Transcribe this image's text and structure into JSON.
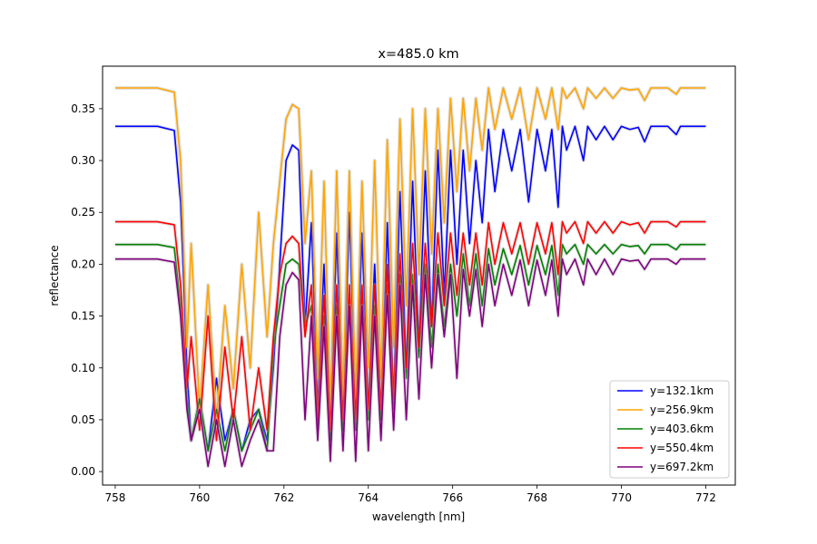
{
  "chart_data": {
    "type": "line",
    "title": "x=485.0 km",
    "xlabel": "wavelength [nm]",
    "ylabel": "reflectance",
    "xlim": [
      757.7,
      772.7
    ],
    "ylim": [
      -0.013,
      0.391
    ],
    "xticks": [
      758,
      760,
      762,
      764,
      766,
      768,
      770,
      772
    ],
    "yticks": [
      0.0,
      0.05,
      0.1,
      0.15,
      0.2,
      0.25,
      0.3,
      0.35
    ],
    "xtick_labels": [
      "758",
      "760",
      "762",
      "764",
      "766",
      "768",
      "770",
      "772"
    ],
    "ytick_labels": [
      "0.00",
      "0.05",
      "0.10",
      "0.15",
      "0.20",
      "0.25",
      "0.30",
      "0.35"
    ],
    "grid": false,
    "legend_position": "lower-right",
    "series": [
      {
        "name": "y=132.1km",
        "color": "#0000ff",
        "x": [
          758.0,
          759.0,
          759.4,
          759.55,
          759.7,
          759.8,
          760.0,
          760.2,
          760.4,
          760.6,
          760.8,
          761.0,
          761.2,
          761.4,
          761.6,
          761.75,
          761.9,
          762.05,
          762.2,
          762.35,
          762.5,
          762.65,
          762.8,
          762.95,
          763.1,
          763.25,
          763.4,
          763.55,
          763.7,
          763.85,
          764.0,
          764.15,
          764.3,
          764.45,
          764.6,
          764.75,
          764.9,
          765.05,
          765.2,
          765.35,
          765.5,
          765.65,
          765.8,
          765.95,
          766.1,
          766.25,
          766.4,
          766.55,
          766.7,
          766.85,
          767.0,
          767.2,
          767.4,
          767.6,
          767.8,
          768.0,
          768.2,
          768.35,
          768.5,
          768.6,
          768.7,
          768.9,
          769.1,
          769.2,
          769.4,
          769.6,
          769.8,
          770.0,
          770.2,
          770.4,
          770.55,
          770.7,
          770.9,
          771.1,
          771.3,
          771.4,
          771.6,
          771.8,
          772.0
        ],
        "values": [
          0.333,
          0.333,
          0.329,
          0.26,
          0.1,
          0.03,
          0.07,
          0.02,
          0.09,
          0.03,
          0.06,
          0.02,
          0.05,
          0.06,
          0.03,
          0.1,
          0.2,
          0.3,
          0.315,
          0.31,
          0.14,
          0.24,
          0.06,
          0.2,
          0.04,
          0.23,
          0.05,
          0.25,
          0.05,
          0.23,
          0.06,
          0.2,
          0.05,
          0.24,
          0.07,
          0.27,
          0.1,
          0.28,
          0.12,
          0.29,
          0.14,
          0.31,
          0.17,
          0.31,
          0.2,
          0.31,
          0.22,
          0.3,
          0.24,
          0.33,
          0.27,
          0.33,
          0.29,
          0.33,
          0.26,
          0.33,
          0.29,
          0.33,
          0.255,
          0.333,
          0.31,
          0.333,
          0.3,
          0.333,
          0.32,
          0.333,
          0.32,
          0.333,
          0.33,
          0.332,
          0.318,
          0.333,
          0.333,
          0.333,
          0.325,
          0.333,
          0.333,
          0.333,
          0.333
        ]
      },
      {
        "name": "y=256.9km",
        "color": "#ffa500",
        "x": [
          758.0,
          759.0,
          759.4,
          759.55,
          759.7,
          759.8,
          760.0,
          760.2,
          760.4,
          760.6,
          760.8,
          761.0,
          761.2,
          761.4,
          761.6,
          761.75,
          761.9,
          762.05,
          762.2,
          762.35,
          762.5,
          762.65,
          762.8,
          762.95,
          763.1,
          763.25,
          763.4,
          763.55,
          763.7,
          763.85,
          764.0,
          764.15,
          764.3,
          764.45,
          764.6,
          764.75,
          764.9,
          765.05,
          765.2,
          765.35,
          765.5,
          765.65,
          765.8,
          765.95,
          766.1,
          766.25,
          766.4,
          766.55,
          766.7,
          766.85,
          767.0,
          767.2,
          767.4,
          767.6,
          767.8,
          768.0,
          768.2,
          768.35,
          768.5,
          768.6,
          768.7,
          768.9,
          769.1,
          769.2,
          769.4,
          769.6,
          769.8,
          770.0,
          770.2,
          770.4,
          770.55,
          770.7,
          770.9,
          771.1,
          771.3,
          771.4,
          771.6,
          771.8,
          772.0
        ],
        "values": [
          0.37,
          0.37,
          0.366,
          0.3,
          0.12,
          0.22,
          0.06,
          0.18,
          0.05,
          0.16,
          0.08,
          0.2,
          0.1,
          0.25,
          0.13,
          0.22,
          0.28,
          0.34,
          0.354,
          0.35,
          0.22,
          0.29,
          0.09,
          0.28,
          0.06,
          0.29,
          0.07,
          0.29,
          0.07,
          0.28,
          0.1,
          0.3,
          0.09,
          0.32,
          0.12,
          0.34,
          0.16,
          0.35,
          0.19,
          0.35,
          0.21,
          0.35,
          0.24,
          0.36,
          0.27,
          0.36,
          0.29,
          0.36,
          0.31,
          0.37,
          0.33,
          0.37,
          0.34,
          0.37,
          0.32,
          0.37,
          0.34,
          0.37,
          0.33,
          0.37,
          0.36,
          0.37,
          0.35,
          0.37,
          0.36,
          0.37,
          0.36,
          0.37,
          0.368,
          0.369,
          0.358,
          0.37,
          0.37,
          0.37,
          0.364,
          0.37,
          0.37,
          0.37,
          0.37
        ]
      },
      {
        "name": "y=403.6km",
        "color": "#008000",
        "x": [
          758.0,
          759.0,
          759.4,
          759.55,
          759.7,
          759.8,
          760.0,
          760.2,
          760.4,
          760.6,
          760.8,
          761.0,
          761.2,
          761.4,
          761.6,
          761.75,
          761.9,
          762.05,
          762.2,
          762.35,
          762.5,
          762.65,
          762.8,
          762.95,
          763.1,
          763.25,
          763.4,
          763.55,
          763.7,
          763.85,
          764.0,
          764.15,
          764.3,
          764.45,
          764.6,
          764.75,
          764.9,
          765.05,
          765.2,
          765.35,
          765.5,
          765.65,
          765.8,
          765.95,
          766.1,
          766.25,
          766.4,
          766.55,
          766.7,
          766.85,
          767.0,
          767.2,
          767.4,
          767.6,
          767.8,
          768.0,
          768.2,
          768.35,
          768.5,
          768.6,
          768.7,
          768.9,
          769.1,
          769.2,
          769.4,
          769.6,
          769.8,
          770.0,
          770.2,
          770.4,
          770.55,
          770.7,
          770.9,
          771.1,
          771.3,
          771.4,
          771.6,
          771.8,
          772.0
        ],
        "values": [
          0.219,
          0.219,
          0.216,
          0.16,
          0.07,
          0.03,
          0.07,
          0.02,
          0.06,
          0.02,
          0.06,
          0.02,
          0.04,
          0.06,
          0.02,
          0.12,
          0.16,
          0.2,
          0.205,
          0.2,
          0.14,
          0.16,
          0.04,
          0.15,
          0.03,
          0.16,
          0.04,
          0.17,
          0.04,
          0.17,
          0.05,
          0.16,
          0.05,
          0.18,
          0.06,
          0.19,
          0.09,
          0.19,
          0.11,
          0.2,
          0.12,
          0.2,
          0.14,
          0.2,
          0.15,
          0.21,
          0.16,
          0.21,
          0.16,
          0.215,
          0.18,
          0.215,
          0.19,
          0.218,
          0.18,
          0.218,
          0.19,
          0.218,
          0.17,
          0.219,
          0.21,
          0.219,
          0.2,
          0.219,
          0.21,
          0.219,
          0.21,
          0.219,
          0.217,
          0.218,
          0.21,
          0.219,
          0.219,
          0.219,
          0.214,
          0.219,
          0.219,
          0.219,
          0.219
        ]
      },
      {
        "name": "y=550.4km",
        "color": "#ff0000",
        "x": [
          758.0,
          759.0,
          759.4,
          759.55,
          759.7,
          759.8,
          760.0,
          760.2,
          760.4,
          760.6,
          760.8,
          761.0,
          761.2,
          761.4,
          761.6,
          761.75,
          761.9,
          762.05,
          762.2,
          762.35,
          762.5,
          762.65,
          762.8,
          762.95,
          763.1,
          763.25,
          763.4,
          763.55,
          763.7,
          763.85,
          764.0,
          764.15,
          764.3,
          764.45,
          764.6,
          764.75,
          764.9,
          765.05,
          765.2,
          765.35,
          765.5,
          765.65,
          765.8,
          765.95,
          766.1,
          766.25,
          766.4,
          766.55,
          766.7,
          766.85,
          767.0,
          767.2,
          767.4,
          767.6,
          767.8,
          768.0,
          768.2,
          768.35,
          768.5,
          768.6,
          768.7,
          768.9,
          769.1,
          769.2,
          769.4,
          769.6,
          769.8,
          770.0,
          770.2,
          770.4,
          770.55,
          770.7,
          770.9,
          771.1,
          771.3,
          771.4,
          771.6,
          771.8,
          772.0
        ],
        "values": [
          0.241,
          0.241,
          0.238,
          0.18,
          0.08,
          0.13,
          0.04,
          0.15,
          0.03,
          0.12,
          0.05,
          0.13,
          0.04,
          0.1,
          0.04,
          0.13,
          0.19,
          0.22,
          0.227,
          0.22,
          0.13,
          0.18,
          0.05,
          0.17,
          0.04,
          0.18,
          0.05,
          0.18,
          0.05,
          0.18,
          0.06,
          0.18,
          0.06,
          0.2,
          0.07,
          0.21,
          0.1,
          0.22,
          0.12,
          0.22,
          0.14,
          0.23,
          0.16,
          0.23,
          0.17,
          0.23,
          0.18,
          0.23,
          0.18,
          0.24,
          0.2,
          0.24,
          0.21,
          0.24,
          0.2,
          0.24,
          0.21,
          0.24,
          0.19,
          0.241,
          0.23,
          0.241,
          0.22,
          0.241,
          0.23,
          0.241,
          0.23,
          0.241,
          0.238,
          0.24,
          0.23,
          0.241,
          0.241,
          0.241,
          0.236,
          0.241,
          0.241,
          0.241,
          0.241
        ]
      },
      {
        "name": "y=697.2km",
        "color": "#800080",
        "x": [
          758.0,
          759.0,
          759.4,
          759.55,
          759.7,
          759.8,
          760.0,
          760.2,
          760.4,
          760.6,
          760.8,
          761.0,
          761.2,
          761.4,
          761.6,
          761.75,
          761.9,
          762.05,
          762.2,
          762.35,
          762.5,
          762.65,
          762.8,
          762.95,
          763.1,
          763.25,
          763.4,
          763.55,
          763.7,
          763.85,
          764.0,
          764.15,
          764.3,
          764.45,
          764.6,
          764.75,
          764.9,
          765.05,
          765.2,
          765.35,
          765.5,
          765.65,
          765.8,
          765.95,
          766.1,
          766.25,
          766.4,
          766.55,
          766.7,
          766.85,
          767.0,
          767.2,
          767.4,
          767.6,
          767.8,
          768.0,
          768.2,
          768.35,
          768.5,
          768.6,
          768.7,
          768.9,
          769.1,
          769.2,
          769.4,
          769.6,
          769.8,
          770.0,
          770.2,
          770.4,
          770.55,
          770.7,
          770.9,
          771.1,
          771.3,
          771.4,
          771.6,
          771.8,
          772.0
        ],
        "values": [
          0.205,
          0.205,
          0.202,
          0.15,
          0.06,
          0.03,
          0.06,
          0.005,
          0.05,
          0.005,
          0.05,
          0.005,
          0.03,
          0.05,
          0.02,
          0.02,
          0.13,
          0.18,
          0.192,
          0.185,
          0.05,
          0.15,
          0.03,
          0.14,
          0.01,
          0.15,
          0.02,
          0.16,
          0.01,
          0.16,
          0.02,
          0.15,
          0.03,
          0.17,
          0.04,
          0.18,
          0.05,
          0.18,
          0.07,
          0.19,
          0.1,
          0.19,
          0.13,
          0.19,
          0.09,
          0.195,
          0.15,
          0.195,
          0.14,
          0.2,
          0.16,
          0.2,
          0.17,
          0.204,
          0.16,
          0.204,
          0.17,
          0.204,
          0.15,
          0.205,
          0.19,
          0.205,
          0.18,
          0.205,
          0.19,
          0.205,
          0.19,
          0.205,
          0.203,
          0.204,
          0.195,
          0.205,
          0.205,
          0.205,
          0.2,
          0.205,
          0.205,
          0.205,
          0.205
        ]
      }
    ]
  }
}
